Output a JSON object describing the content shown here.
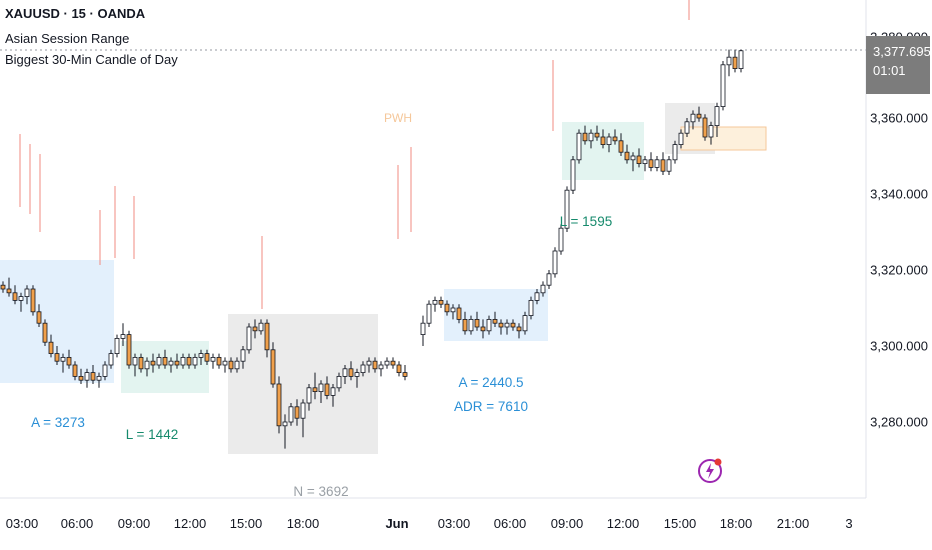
{
  "legend": {
    "symbol_line": "XAUUSD · 15 · OANDA",
    "indicator_1": "Asian Session Range",
    "indicator_2": "Biggest 30-Min Candle of Day"
  },
  "price_axis": {
    "labels": [
      "3,360.000",
      "3,340.000",
      "3,320.000",
      "3,300.000",
      "3,280.000"
    ],
    "last_price": "3,377.695",
    "countdown": "01:01",
    "hidden_top_label": "3,380.000"
  },
  "time_axis": {
    "labels": [
      "03:00",
      "06:00",
      "09:00",
      "12:00",
      "15:00",
      "18:00",
      "Jun",
      "03:00",
      "06:00",
      "09:00",
      "12:00",
      "15:00",
      "18:00",
      "21:00",
      "3"
    ]
  },
  "annotations": {
    "a_left": "A = 3273",
    "l_left": "L = 1442",
    "n_bottom": "N = 3692",
    "pwh": "PWH",
    "a_mid": "A = 2440.5",
    "adr": "ADR = 7610",
    "l_right": "L = 1595"
  },
  "colors": {
    "up": "#131722",
    "down": "#f0a04b",
    "asian_box": "#e3f0fc",
    "london_box": "#e3f4f0",
    "ny_box": "#ebebeb",
    "pwh_box": "#fdf0dc",
    "wick_red": "#f28b82",
    "blue_text": "#2a8fd6",
    "green_text": "#168a6c",
    "pwh_text": "#f5c79a"
  },
  "icons": {
    "flash": "lightning-flash-icon"
  },
  "chart_data": {
    "type": "candlestick",
    "symbol": "XAUUSD",
    "interval": "15",
    "series": [
      {
        "ohlc": [
          [
            3316,
            3317,
            3314,
            3315
          ],
          [
            3315,
            3318,
            3313,
            3314
          ],
          [
            3314,
            3316,
            3311,
            3312
          ],
          [
            3312,
            3314,
            3309,
            3313
          ],
          [
            3313,
            3316,
            3311,
            3315
          ],
          [
            3315,
            3316,
            3308,
            3309
          ],
          [
            3309,
            3311,
            3305,
            3306
          ],
          [
            3306,
            3307,
            3300,
            3301
          ],
          [
            3301,
            3303,
            3297,
            3298
          ],
          [
            3298,
            3300,
            3295,
            3296
          ],
          [
            3296,
            3298,
            3293,
            3297
          ],
          [
            3297,
            3299,
            3294,
            3295
          ],
          [
            3295,
            3296,
            3291,
            3292
          ],
          [
            3292,
            3294,
            3290,
            3291
          ],
          [
            3291,
            3294,
            3289,
            3293
          ],
          [
            3293,
            3295,
            3290,
            3291
          ],
          [
            3291,
            3293,
            3289,
            3292
          ],
          [
            3292,
            3296,
            3291,
            3295
          ],
          [
            3295,
            3299,
            3294,
            3298
          ],
          [
            3298,
            3303,
            3297,
            3302
          ],
          [
            3302,
            3306,
            3300,
            3303
          ],
          [
            3303,
            3304,
            3294,
            3295
          ],
          [
            3295,
            3298,
            3292,
            3297
          ],
          [
            3297,
            3298,
            3293,
            3294
          ],
          [
            3294,
            3297,
            3292,
            3296
          ],
          [
            3296,
            3298,
            3293,
            3295
          ],
          [
            3295,
            3298,
            3294,
            3297
          ],
          [
            3297,
            3299,
            3294,
            3295
          ],
          [
            3295,
            3297,
            3293,
            3296
          ],
          [
            3296,
            3298,
            3294,
            3295
          ],
          [
            3295,
            3298,
            3294,
            3297
          ],
          [
            3297,
            3298,
            3294,
            3295
          ],
          [
            3295,
            3298,
            3294,
            3297
          ],
          [
            3297,
            3299,
            3295,
            3298
          ],
          [
            3298,
            3299,
            3295,
            3296
          ],
          [
            3296,
            3298,
            3294,
            3297
          ],
          [
            3297,
            3298,
            3294,
            3295
          ],
          [
            3295,
            3297,
            3293,
            3296
          ],
          [
            3296,
            3297,
            3293,
            3294
          ],
          [
            3294,
            3297,
            3293,
            3296
          ],
          [
            3296,
            3300,
            3294,
            3299
          ],
          [
            3299,
            3306,
            3298,
            3305
          ],
          [
            3305,
            3307,
            3302,
            3304
          ],
          [
            3304,
            3307,
            3303,
            3306
          ],
          [
            3306,
            3307,
            3297,
            3299
          ],
          [
            3299,
            3301,
            3289,
            3290
          ],
          [
            3290,
            3292,
            3277,
            3279
          ],
          [
            3279,
            3282,
            3273,
            3280
          ],
          [
            3280,
            3285,
            3279,
            3284
          ],
          [
            3284,
            3286,
            3279,
            3281
          ],
          [
            3281,
            3286,
            3276,
            3285
          ],
          [
            3285,
            3290,
            3283,
            3289
          ],
          [
            3289,
            3293,
            3286,
            3288
          ],
          [
            3288,
            3291,
            3285,
            3290
          ],
          [
            3290,
            3292,
            3286,
            3287
          ],
          [
            3287,
            3290,
            3284,
            3289
          ],
          [
            3289,
            3293,
            3288,
            3292
          ],
          [
            3292,
            3295,
            3290,
            3294
          ],
          [
            3294,
            3296,
            3291,
            3292
          ],
          [
            3292,
            3294,
            3289,
            3293
          ],
          [
            3293,
            3296,
            3292,
            3295
          ],
          [
            3295,
            3297,
            3293,
            3296
          ],
          [
            3296,
            3297,
            3293,
            3294
          ],
          [
            3294,
            3296,
            3292,
            3295
          ],
          [
            3295,
            3297,
            3294,
            3296
          ],
          [
            3296,
            3297,
            3294,
            3295
          ],
          [
            3295,
            3296,
            3292,
            3293
          ],
          [
            3293,
            3295,
            3291,
            3292
          ],
          [
            3303,
            3308,
            3300,
            3306
          ],
          [
            3306,
            3312,
            3305,
            3311
          ],
          [
            3311,
            3313,
            3309,
            3312
          ],
          [
            3312,
            3313,
            3310,
            3311
          ],
          [
            3311,
            3312,
            3308,
            3309
          ],
          [
            3309,
            3311,
            3307,
            3310
          ],
          [
            3310,
            3311,
            3306,
            3307
          ],
          [
            3307,
            3309,
            3303,
            3304
          ],
          [
            3304,
            3308,
            3303,
            3307
          ],
          [
            3307,
            3309,
            3304,
            3305
          ],
          [
            3305,
            3307,
            3302,
            3304
          ],
          [
            3304,
            3308,
            3303,
            3307
          ],
          [
            3307,
            3309,
            3305,
            3306
          ],
          [
            3306,
            3307,
            3303,
            3305
          ],
          [
            3305,
            3307,
            3303,
            3306
          ],
          [
            3306,
            3307,
            3304,
            3305
          ],
          [
            3305,
            3306,
            3302,
            3304
          ],
          [
            3304,
            3309,
            3303,
            3308
          ],
          [
            3308,
            3313,
            3307,
            3312
          ],
          [
            3312,
            3315,
            3311,
            3314
          ],
          [
            3314,
            3317,
            3313,
            3316
          ],
          [
            3316,
            3320,
            3315,
            3319
          ],
          [
            3319,
            3326,
            3318,
            3325
          ],
          [
            3325,
            3332,
            3324,
            3331
          ],
          [
            3331,
            3342,
            3330,
            3341
          ],
          [
            3341,
            3350,
            3340,
            3349
          ],
          [
            3349,
            3357,
            3348,
            3356
          ],
          [
            3356,
            3358,
            3353,
            3354
          ],
          [
            3354,
            3357,
            3352,
            3356
          ],
          [
            3356,
            3358,
            3354,
            3355
          ],
          [
            3355,
            3357,
            3352,
            3353
          ],
          [
            3353,
            3356,
            3351,
            3355
          ],
          [
            3355,
            3357,
            3353,
            3354
          ],
          [
            3354,
            3356,
            3350,
            3351
          ],
          [
            3351,
            3353,
            3348,
            3349
          ],
          [
            3349,
            3351,
            3346,
            3350
          ],
          [
            3350,
            3352,
            3347,
            3348
          ],
          [
            3348,
            3350,
            3346,
            3349
          ],
          [
            3349,
            3351,
            3346,
            3347
          ],
          [
            3347,
            3350,
            3346,
            3349
          ],
          [
            3349,
            3351,
            3345,
            3346
          ],
          [
            3346,
            3350,
            3345,
            3349
          ],
          [
            3349,
            3354,
            3348,
            3353
          ],
          [
            3353,
            3357,
            3352,
            3356
          ],
          [
            3356,
            3360,
            3355,
            3359
          ],
          [
            3359,
            3362,
            3357,
            3361
          ],
          [
            3361,
            3363,
            3359,
            3360
          ],
          [
            3360,
            3361,
            3354,
            3355
          ],
          [
            3355,
            3359,
            3353,
            3358
          ],
          [
            3358,
            3364,
            3355,
            3363
          ],
          [
            3363,
            3375,
            3362,
            3374
          ],
          [
            3374,
            3378,
            3371,
            3376
          ],
          [
            3376,
            3378,
            3372,
            3373
          ],
          [
            3373,
            3378,
            3372,
            3377.695
          ]
        ]
      }
    ],
    "price_range": [
      3269,
      3390
    ]
  }
}
